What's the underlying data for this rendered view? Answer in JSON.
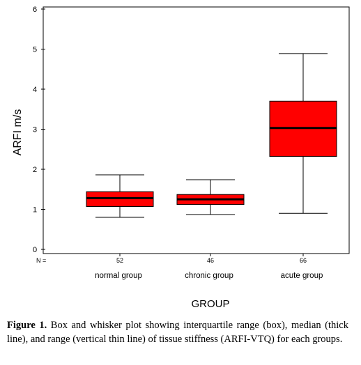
{
  "chart_data": {
    "type": "boxplot",
    "ylabel": "ARFI m/s",
    "xlabel": "GROUP",
    "ylim": [
      0,
      6
    ],
    "yticks": [
      "0",
      "1",
      "2",
      "3",
      "4",
      "5",
      "6"
    ],
    "n_label": "N =",
    "box_color": "#ff0000",
    "categories": [
      "normal group",
      "chronic group",
      "acute group"
    ],
    "n": [
      "52",
      "46",
      "66"
    ],
    "boxes": [
      {
        "min": 0.8,
        "q1": 1.07,
        "median": 1.28,
        "q3": 1.44,
        "max": 1.86
      },
      {
        "min": 0.87,
        "q1": 1.12,
        "median": 1.25,
        "q3": 1.37,
        "max": 1.74
      },
      {
        "min": 0.9,
        "q1": 2.32,
        "median": 3.03,
        "q3": 3.7,
        "max": 4.89
      }
    ]
  },
  "caption": {
    "label": "Figure 1.",
    "text": " Box and whisker plot showing interquartile range (box), median (thick line), and range (vertical thin line) of tissue stiffness (ARFI-VTQ) for each groups."
  }
}
